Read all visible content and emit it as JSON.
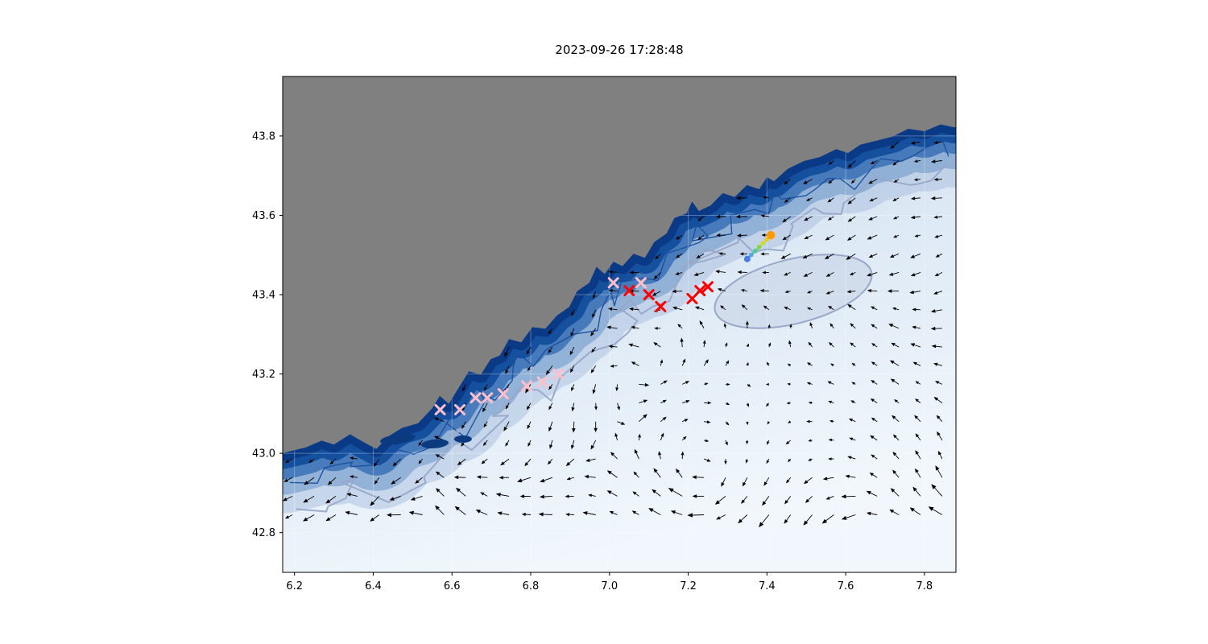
{
  "figure": {
    "title": "2023-09-26 17:28:48",
    "background_color": "#ffffff"
  },
  "axes": {
    "xlim": [
      6.17,
      7.88
    ],
    "ylim": [
      42.7,
      43.95
    ],
    "xticks": [
      6.2,
      6.4,
      6.6,
      6.8,
      7.0,
      7.2,
      7.4,
      7.6,
      7.8
    ],
    "yticks": [
      42.8,
      43.0,
      43.2,
      43.4,
      43.6,
      43.8
    ],
    "xtick_labels": [
      "6.2",
      "6.4",
      "6.6",
      "6.8",
      "7.0",
      "7.2",
      "7.4",
      "7.6",
      "7.8"
    ],
    "ytick_labels": [
      "42.8",
      "43.0",
      "43.2",
      "43.4",
      "43.6",
      "43.8"
    ]
  },
  "chart_data": {
    "type": "scatter",
    "title": "2023-09-26 17:28:48",
    "xlabel": "",
    "ylabel": "",
    "xlim": [
      6.17,
      7.88
    ],
    "ylim": [
      42.7,
      43.95
    ],
    "grid": true,
    "legend": "none",
    "series": [
      {
        "name": "pink-x-markers",
        "marker": "x",
        "color": "#FFC0CB",
        "points": [
          [
            6.57,
            43.11
          ],
          [
            6.62,
            43.11
          ],
          [
            6.66,
            43.14
          ],
          [
            6.69,
            43.14
          ],
          [
            6.73,
            43.15
          ],
          [
            6.79,
            43.17
          ],
          [
            6.83,
            43.18
          ],
          [
            6.87,
            43.2
          ],
          [
            7.01,
            43.43
          ],
          [
            7.08,
            43.43
          ]
        ]
      },
      {
        "name": "red-x-markers",
        "marker": "x",
        "color": "#FF0000",
        "points": [
          [
            7.05,
            43.41
          ],
          [
            7.1,
            43.4
          ],
          [
            7.13,
            43.37
          ],
          [
            7.21,
            43.39
          ],
          [
            7.23,
            43.41
          ],
          [
            7.25,
            43.42
          ]
        ]
      },
      {
        "name": "drifter-trajectory",
        "marker": "o",
        "colormap": "blue-to-orange",
        "points": [
          [
            7.35,
            43.49
          ],
          [
            7.36,
            43.5
          ],
          [
            7.37,
            43.51
          ],
          [
            7.38,
            43.52
          ],
          [
            7.39,
            43.53
          ],
          [
            7.4,
            43.54
          ],
          [
            7.41,
            43.55
          ]
        ],
        "point_colors": [
          "#4a7de0",
          "#55a8e0",
          "#4fc8a0",
          "#86d44e",
          "#c9df2f",
          "#f2c51d",
          "#ff9a00"
        ]
      }
    ],
    "map": {
      "description": "Ligurian Sea / French Riviera coastal bathymetry map with surface-current quiver field",
      "land_color": "#808080",
      "shallow_color": "#0a3a86",
      "deep_color": "#f1f7fc",
      "contour_colors": [
        "#1a4f9e",
        "#99a7c9"
      ],
      "coastline": [
        [
          6.17,
          43.001
        ],
        [
          6.229,
          43.015
        ],
        [
          6.269,
          43.032
        ],
        [
          6.3,
          43.022
        ],
        [
          6.341,
          43.048
        ],
        [
          6.376,
          43.028
        ],
        [
          6.408,
          43.011
        ],
        [
          6.437,
          43.042
        ],
        [
          6.473,
          43.064
        ],
        [
          6.514,
          43.076
        ],
        [
          6.551,
          43.115
        ],
        [
          6.569,
          43.145
        ],
        [
          6.592,
          43.125
        ],
        [
          6.62,
          43.17
        ],
        [
          6.643,
          43.207
        ],
        [
          6.673,
          43.198
        ],
        [
          6.698,
          43.237
        ],
        [
          6.722,
          43.247
        ],
        [
          6.745,
          43.288
        ],
        [
          6.776,
          43.28
        ],
        [
          6.804,
          43.318
        ],
        [
          6.837,
          43.314
        ],
        [
          6.867,
          43.348
        ],
        [
          6.898,
          43.369
        ],
        [
          6.918,
          43.409
        ],
        [
          6.949,
          43.43
        ],
        [
          6.967,
          43.47
        ],
        [
          6.988,
          43.452
        ],
        [
          7.01,
          43.483
        ],
        [
          7.033,
          43.472
        ],
        [
          7.061,
          43.503
        ],
        [
          7.09,
          43.493
        ],
        [
          7.114,
          43.533
        ],
        [
          7.145,
          43.554
        ],
        [
          7.165,
          43.593
        ],
        [
          7.196,
          43.605
        ],
        [
          7.21,
          43.635
        ],
        [
          7.227,
          43.611
        ],
        [
          7.257,
          43.625
        ],
        [
          7.288,
          43.656
        ],
        [
          7.318,
          43.646
        ],
        [
          7.349,
          43.676
        ],
        [
          7.38,
          43.666
        ],
        [
          7.4,
          43.696
        ],
        [
          7.418,
          43.686
        ],
        [
          7.453,
          43.717
        ],
        [
          7.494,
          43.737
        ],
        [
          7.535,
          43.747
        ],
        [
          7.576,
          43.767
        ],
        [
          7.606,
          43.757
        ],
        [
          7.637,
          43.778
        ],
        [
          7.678,
          43.788
        ],
        [
          7.718,
          43.798
        ],
        [
          7.759,
          43.818
        ],
        [
          7.8,
          43.812
        ],
        [
          7.841,
          43.829
        ],
        [
          7.876,
          43.822
        ]
      ],
      "islands": [
        {
          "lon": 6.462,
          "lat": 43.036
        },
        {
          "lon": 6.557,
          "lat": 43.024
        },
        {
          "lon": 6.628,
          "lat": 43.036
        }
      ]
    },
    "quiver": {
      "arrow_color": "#000000",
      "grid_step_deg": [
        0.055,
        0.047
      ],
      "note": "black current-vector arrows over ocean only; along-shore southwestward flow near the coast, stronger long westward arrows in the southeast corner, weak flow mid-basin"
    }
  }
}
